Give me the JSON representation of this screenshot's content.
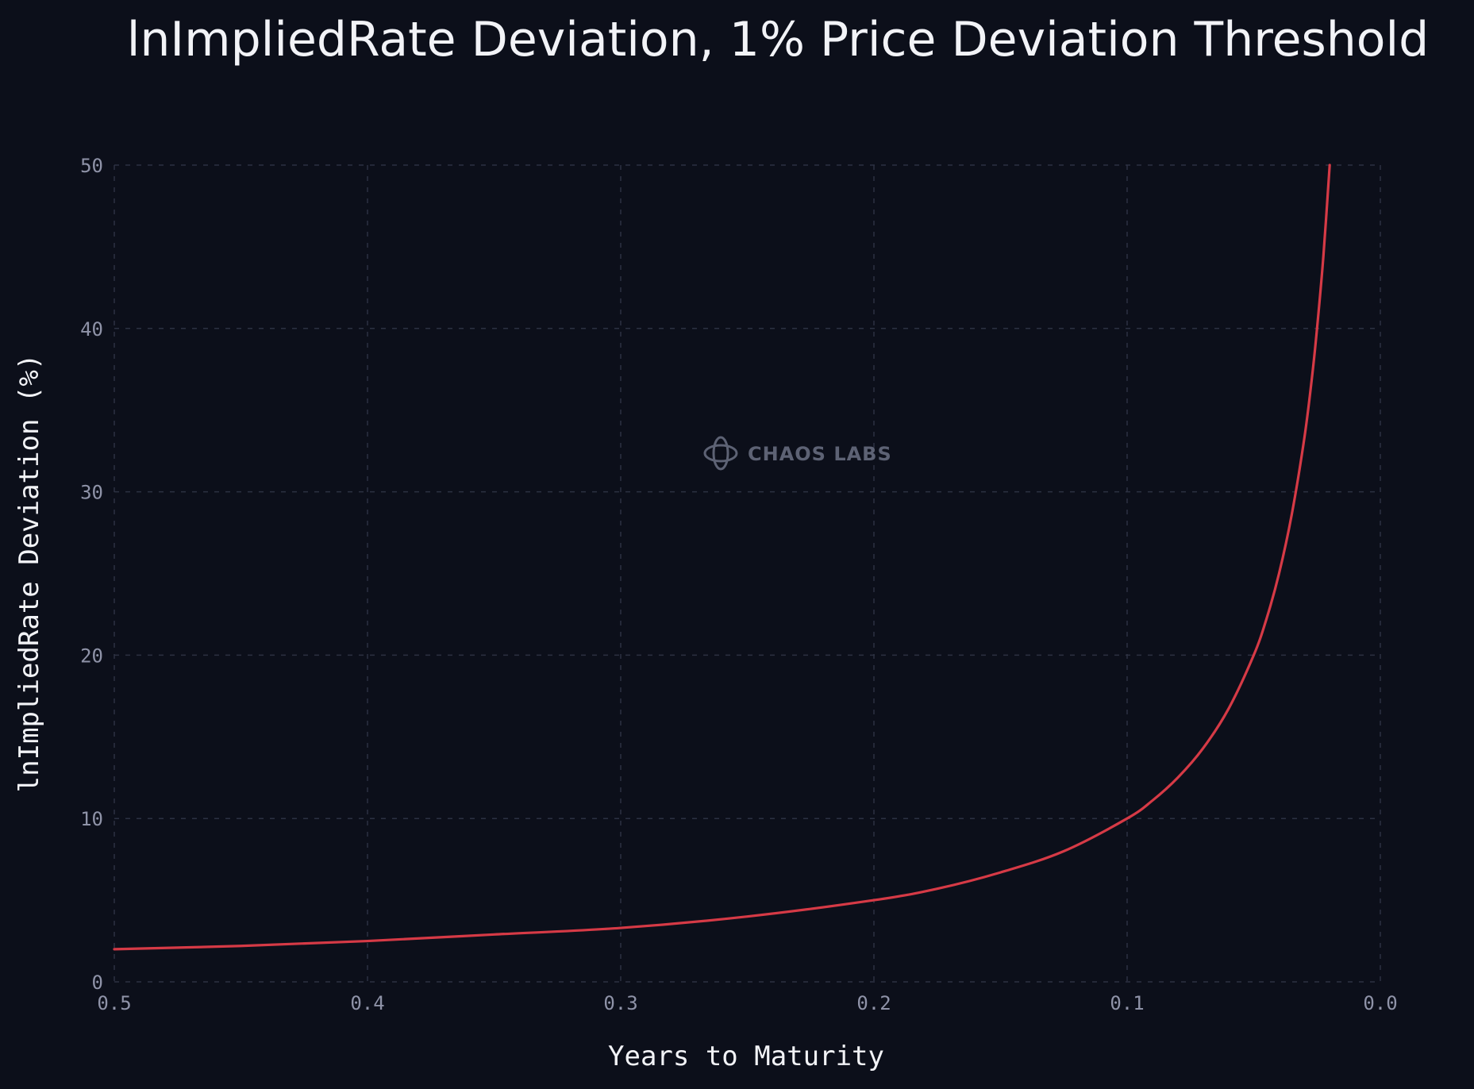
{
  "chart_data": {
    "type": "line",
    "title": "lnImpliedRate Deviation, 1% Price Deviation Threshold",
    "xlabel": "Years to Maturity",
    "ylabel": "lnImpliedRate Deviation (%)",
    "xlim": [
      0.5,
      0.0
    ],
    "ylim": [
      0,
      50
    ],
    "x_reversed": true,
    "x_ticks": [
      "0.5",
      "0.4",
      "0.3",
      "0.2",
      "0.1",
      "0.0"
    ],
    "x_tick_values": [
      0.5,
      0.4,
      0.3,
      0.2,
      0.1,
      0.0
    ],
    "y_ticks": [
      "0",
      "10",
      "20",
      "30",
      "40",
      "50"
    ],
    "y_tick_values": [
      0,
      10,
      20,
      30,
      40,
      50
    ],
    "grid": true,
    "series": [
      {
        "color": "#d63a46",
        "x": [
          0.5,
          0.45,
          0.4,
          0.35,
          0.3,
          0.25,
          0.2,
          0.175,
          0.15,
          0.125,
          0.1,
          0.09,
          0.08,
          0.07,
          0.06,
          0.05,
          0.045,
          0.04,
          0.035,
          0.03,
          0.027,
          0.025,
          0.0225,
          0.02
        ],
        "y": [
          2.0,
          2.2,
          2.5,
          2.9,
          3.3,
          4.0,
          5.0,
          5.7,
          6.7,
          8.0,
          10.0,
          11.1,
          12.5,
          14.3,
          16.7,
          20.0,
          22.2,
          25.0,
          28.6,
          33.3,
          37.0,
          40.0,
          44.4,
          50.0
        ]
      }
    ]
  },
  "watermark": {
    "text": "CHAOS LABS",
    "icon": "chaos-labs-logo-icon"
  },
  "colors": {
    "background": "#0c0f1a",
    "line": "#d63a46",
    "grid": "#2c3142",
    "tick_text": "#8f93a8",
    "title_text": "#f2f3f7"
  }
}
